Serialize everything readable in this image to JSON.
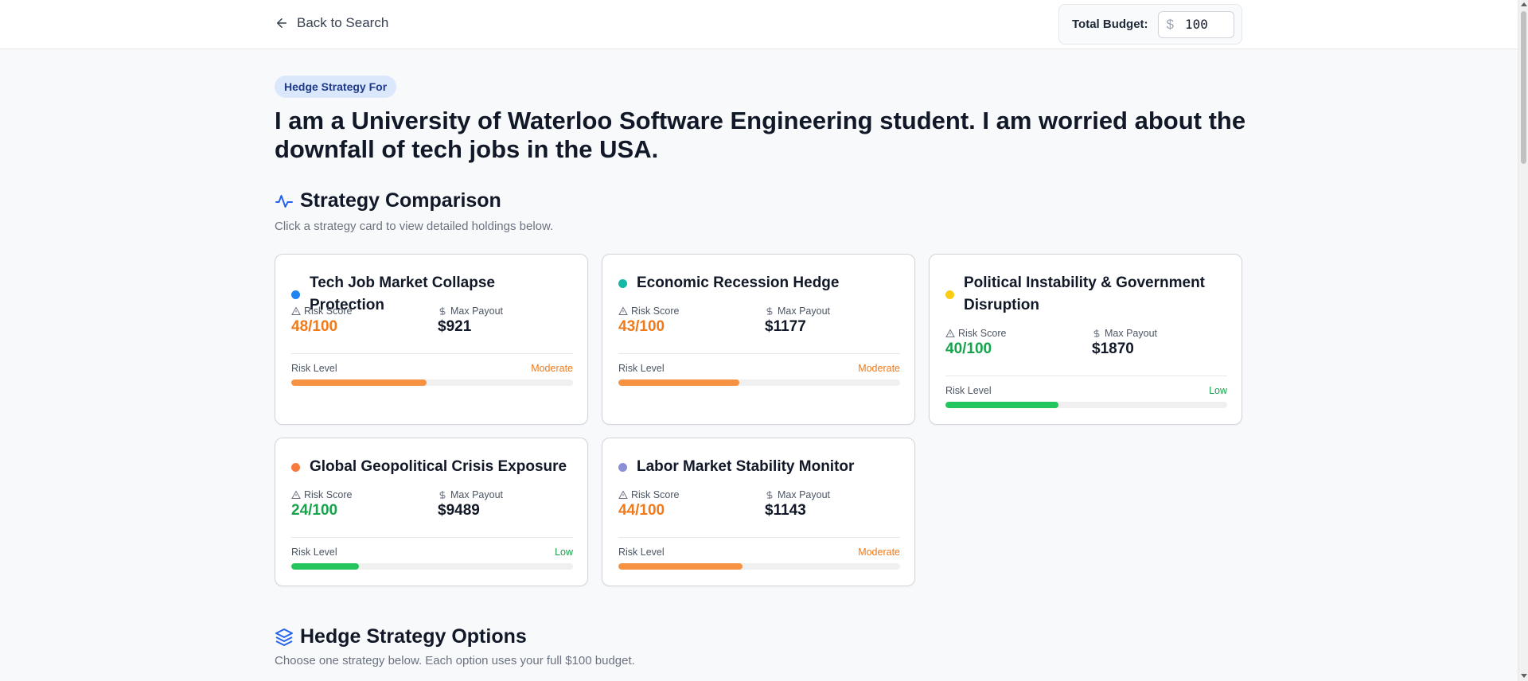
{
  "topbar": {
    "back_label": "Back to Search",
    "budget_label": "Total Budget:",
    "budget_currency": "$",
    "budget_value": "100"
  },
  "hero": {
    "pill": "Hedge Strategy For",
    "headline": "I am a University of Waterloo Software Engineering student. I am worried about the downfall of tech jobs in the USA."
  },
  "comparison": {
    "title": "Strategy Comparison",
    "subtitle": "Click a strategy card to view detailed holdings below.",
    "risk_score_label": "Risk Score",
    "max_payout_label": "Max Payout",
    "risk_level_label": "Risk Level",
    "cards": [
      {
        "title": "Tech Job Market Collapse Protection",
        "dot_color": "#1d84f0",
        "risk_score": "48/100",
        "max_payout": "$921",
        "risk_level": "Moderate",
        "risk_fraction": 0.48,
        "level_color": "#f07a1a",
        "bar_color": "#f59342"
      },
      {
        "title": "Economic Recession Hedge",
        "dot_color": "#14b8a6",
        "risk_score": "43/100",
        "max_payout": "$1177",
        "risk_level": "Moderate",
        "risk_fraction": 0.43,
        "level_color": "#f07a1a",
        "bar_color": "#f59342"
      },
      {
        "title": "Political Instability & Government Disruption",
        "dot_color": "#facc15",
        "risk_score": "40/100",
        "max_payout": "$1870",
        "risk_level": "Low",
        "risk_fraction": 0.4,
        "level_color": "#16a34a",
        "bar_color": "#22c55e"
      },
      {
        "title": "Global Geopolitical Crisis Exposure",
        "dot_color": "#f97a3d",
        "risk_score": "24/100",
        "max_payout": "$9489",
        "risk_level": "Low",
        "risk_fraction": 0.24,
        "level_color": "#16a34a",
        "bar_color": "#22c55e"
      },
      {
        "title": "Labor Market Stability Monitor",
        "dot_color": "#8b8fd8",
        "risk_score": "44/100",
        "max_payout": "$1143",
        "risk_level": "Moderate",
        "risk_fraction": 0.44,
        "level_color": "#f07a1a",
        "bar_color": "#f59342"
      }
    ]
  },
  "options": {
    "title": "Hedge Strategy Options",
    "subtitle": "Choose one strategy below. Each option uses your full $100 budget."
  },
  "colors": {
    "accent": "#2563eb",
    "moderate": "#f07a1a",
    "low": "#16a34a"
  }
}
